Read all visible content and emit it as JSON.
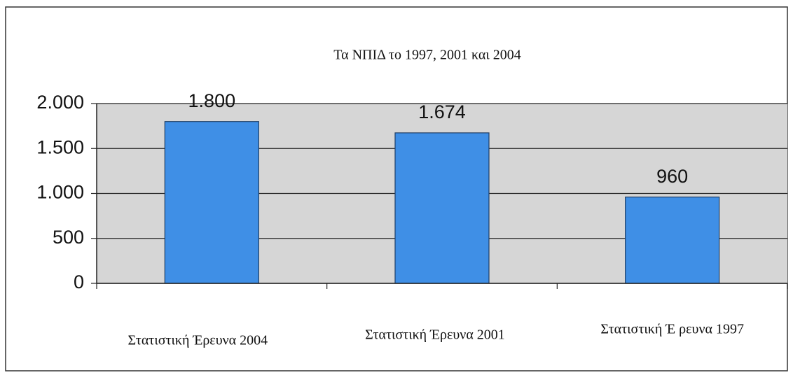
{
  "chart_data": {
    "type": "bar",
    "title": "Τα ΝΠΙΔ το 1997, 2001 και 2004",
    "categories": [
      "Στατιστική Έρευνα 2004",
      "Στατιστική Έρευνα 2001",
      "Στατιστική Έ ρευνα 1997"
    ],
    "values": [
      1800,
      1674,
      960
    ],
    "value_labels": [
      "1.800",
      "1.674",
      "960"
    ],
    "color": "#3f8fe6",
    "ylim": [
      0,
      2000
    ],
    "yticks": [
      0,
      500,
      {
        "value": 1000,
        "label": "1.000"
      },
      {
        "value": 1500,
        "label": "1.500"
      },
      {
        "value": 2000,
        "label": "2.000"
      }
    ],
    "grid": true
  }
}
